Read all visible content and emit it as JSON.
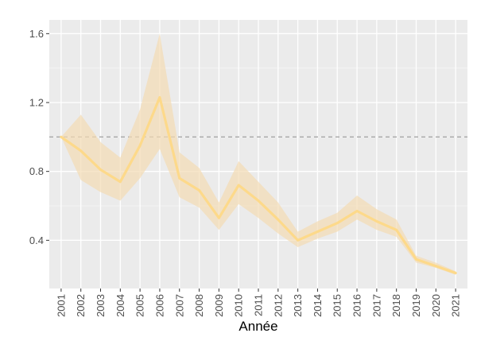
{
  "chart_data": {
    "type": "line",
    "xlabel": "Année",
    "ylabel": "",
    "title": "",
    "ylim": [
      0.12,
      1.68
    ],
    "yticks": [
      0.4,
      0.8,
      1.2,
      1.6
    ],
    "ytick_labels": [
      "0.4",
      "0.8",
      "1.2",
      "1.6"
    ],
    "reference_line": {
      "y": 1.0,
      "style": "dashed",
      "color": "#a6a6a6"
    },
    "categories": [
      "2001",
      "2002",
      "2003",
      "2004",
      "2005",
      "2006",
      "2007",
      "2008",
      "2009",
      "2010",
      "2011",
      "2012",
      "2013",
      "2014",
      "2015",
      "2016",
      "2017",
      "2018",
      "2019",
      "2020",
      "2021"
    ],
    "series": [
      {
        "values": [
          1.0,
          0.92,
          0.81,
          0.74,
          0.95,
          1.23,
          0.76,
          0.69,
          0.53,
          0.72,
          0.63,
          0.52,
          0.4,
          0.45,
          0.5,
          0.57,
          0.51,
          0.46,
          0.29,
          0.25,
          0.21
        ],
        "lower": [
          1.0,
          0.75,
          0.68,
          0.63,
          0.76,
          0.93,
          0.65,
          0.59,
          0.46,
          0.61,
          0.53,
          0.44,
          0.36,
          0.41,
          0.45,
          0.52,
          0.46,
          0.42,
          0.27,
          0.24,
          0.2
        ],
        "upper": [
          1.0,
          1.13,
          0.97,
          0.88,
          1.16,
          1.6,
          0.91,
          0.82,
          0.62,
          0.86,
          0.74,
          0.62,
          0.45,
          0.51,
          0.56,
          0.66,
          0.58,
          0.52,
          0.31,
          0.27,
          0.22
        ],
        "color": "#fdd98a",
        "band_color": "#f3dcb4"
      }
    ],
    "grid": true,
    "panel_background": "#ebebeb"
  }
}
